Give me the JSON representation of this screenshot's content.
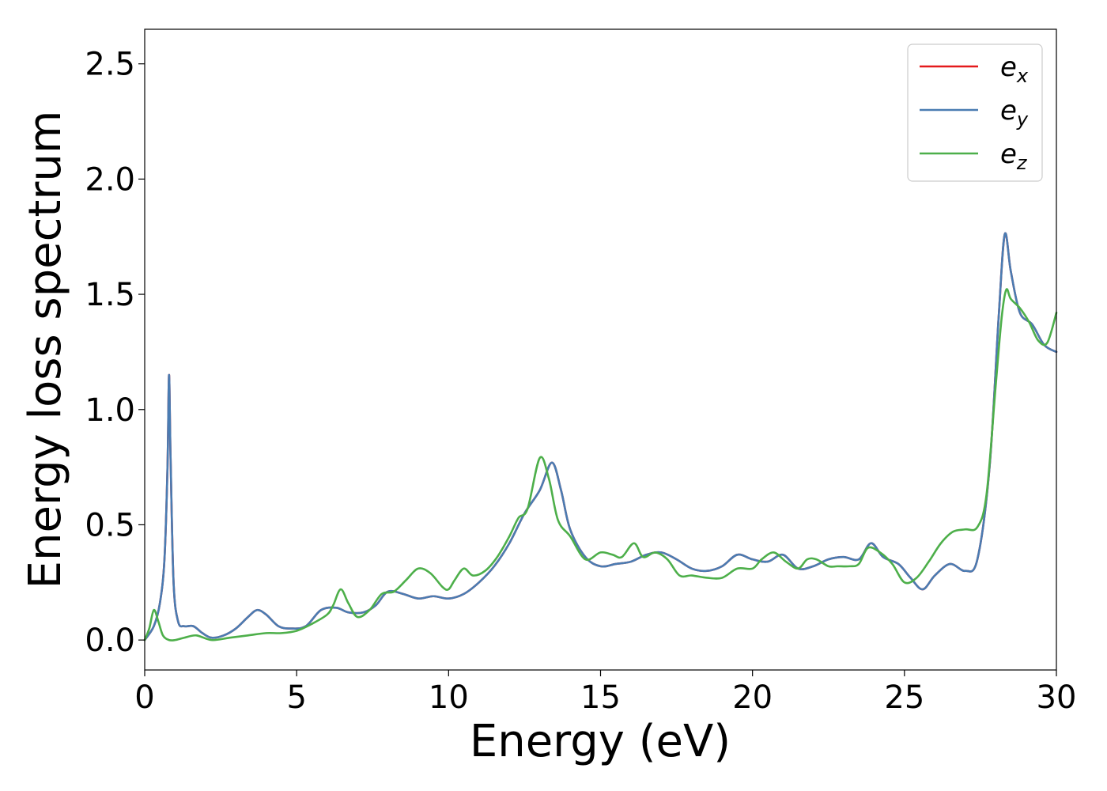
{
  "chart_data": {
    "type": "line",
    "xlabel": "Energy (eV)",
    "ylabel": "Energy loss spectrum",
    "xlim": [
      0,
      30
    ],
    "ylim": [
      -0.13,
      2.65
    ],
    "xticks": [
      0,
      5,
      10,
      15,
      20,
      25,
      30
    ],
    "xtick_labels": [
      "0",
      "5",
      "10",
      "15",
      "20",
      "25",
      "30"
    ],
    "yticks": [
      0.0,
      0.5,
      1.0,
      1.5,
      2.0,
      2.5
    ],
    "ytick_labels": [
      "0.0",
      "0.5",
      "1.0",
      "1.5",
      "2.0",
      "2.5"
    ],
    "grid": false,
    "legend_position": "top-right",
    "legend": [
      {
        "base": "e",
        "sub": "x"
      },
      {
        "base": "e",
        "sub": "y"
      },
      {
        "base": "e",
        "sub": "z"
      }
    ],
    "series": [
      {
        "name": "e_x",
        "color": "#e41a1c",
        "x": [
          0,
          0.3,
          0.5,
          0.65,
          0.75,
          0.8,
          0.85,
          0.95,
          1.1,
          1.3,
          1.6,
          1.9,
          2.2,
          2.6,
          3.0,
          3.4,
          3.7,
          4.0,
          4.4,
          4.8,
          5.3,
          5.8,
          6.3,
          6.7,
          7.2,
          7.6,
          8.0,
          8.5,
          9.0,
          9.5,
          10.0,
          10.5,
          11.0,
          11.5,
          12.0,
          12.5,
          13.0,
          13.4,
          13.7,
          14.0,
          14.5,
          15.0,
          15.5,
          16.0,
          16.5,
          17.0,
          17.5,
          18.0,
          18.5,
          19.0,
          19.5,
          20.0,
          20.5,
          21.0,
          21.5,
          22.0,
          22.5,
          23.0,
          23.5,
          23.9,
          24.3,
          24.8,
          25.2,
          25.6,
          26.0,
          26.5,
          27.0,
          27.4,
          27.8,
          28.1,
          28.3,
          28.5,
          28.8,
          29.2,
          29.6,
          30.0
        ],
        "y": [
          0.0,
          0.06,
          0.16,
          0.35,
          0.75,
          1.15,
          0.8,
          0.25,
          0.08,
          0.06,
          0.06,
          0.03,
          0.01,
          0.02,
          0.05,
          0.1,
          0.13,
          0.11,
          0.06,
          0.05,
          0.06,
          0.13,
          0.14,
          0.12,
          0.12,
          0.15,
          0.21,
          0.2,
          0.18,
          0.19,
          0.18,
          0.2,
          0.25,
          0.32,
          0.42,
          0.55,
          0.65,
          0.77,
          0.65,
          0.48,
          0.36,
          0.32,
          0.33,
          0.34,
          0.37,
          0.38,
          0.35,
          0.31,
          0.3,
          0.32,
          0.37,
          0.35,
          0.34,
          0.37,
          0.31,
          0.32,
          0.35,
          0.36,
          0.35,
          0.42,
          0.36,
          0.33,
          0.27,
          0.22,
          0.28,
          0.33,
          0.3,
          0.35,
          0.75,
          1.4,
          1.76,
          1.6,
          1.42,
          1.37,
          1.28,
          1.25
        ]
      },
      {
        "name": "e_y",
        "color": "#4a7cb2",
        "x": [
          0,
          0.3,
          0.5,
          0.65,
          0.75,
          0.8,
          0.85,
          0.95,
          1.1,
          1.3,
          1.6,
          1.9,
          2.2,
          2.6,
          3.0,
          3.4,
          3.7,
          4.0,
          4.4,
          4.8,
          5.3,
          5.8,
          6.3,
          6.7,
          7.2,
          7.6,
          8.0,
          8.5,
          9.0,
          9.5,
          10.0,
          10.5,
          11.0,
          11.5,
          12.0,
          12.5,
          13.0,
          13.4,
          13.7,
          14.0,
          14.5,
          15.0,
          15.5,
          16.0,
          16.5,
          17.0,
          17.5,
          18.0,
          18.5,
          19.0,
          19.5,
          20.0,
          20.5,
          21.0,
          21.5,
          22.0,
          22.5,
          23.0,
          23.5,
          23.9,
          24.3,
          24.8,
          25.2,
          25.6,
          26.0,
          26.5,
          27.0,
          27.4,
          27.8,
          28.1,
          28.3,
          28.5,
          28.8,
          29.2,
          29.6,
          30.0
        ],
        "y": [
          0.0,
          0.06,
          0.16,
          0.35,
          0.75,
          1.15,
          0.8,
          0.25,
          0.08,
          0.06,
          0.06,
          0.03,
          0.01,
          0.02,
          0.05,
          0.1,
          0.13,
          0.11,
          0.06,
          0.05,
          0.06,
          0.13,
          0.14,
          0.12,
          0.12,
          0.15,
          0.21,
          0.2,
          0.18,
          0.19,
          0.18,
          0.2,
          0.25,
          0.32,
          0.42,
          0.55,
          0.65,
          0.77,
          0.65,
          0.48,
          0.36,
          0.32,
          0.33,
          0.34,
          0.37,
          0.38,
          0.35,
          0.31,
          0.3,
          0.32,
          0.37,
          0.35,
          0.34,
          0.37,
          0.31,
          0.32,
          0.35,
          0.36,
          0.35,
          0.42,
          0.36,
          0.33,
          0.27,
          0.22,
          0.28,
          0.33,
          0.3,
          0.35,
          0.75,
          1.4,
          1.76,
          1.6,
          1.42,
          1.37,
          1.28,
          1.25
        ]
      },
      {
        "name": "e_z",
        "color": "#4daf4a",
        "x": [
          0,
          0.15,
          0.3,
          0.45,
          0.6,
          0.8,
          1.0,
          1.3,
          1.7,
          2.2,
          2.8,
          3.4,
          4.0,
          4.5,
          5.0,
          5.5,
          6.0,
          6.2,
          6.45,
          6.7,
          7.0,
          7.4,
          7.8,
          8.2,
          8.6,
          9.0,
          9.4,
          9.8,
          10.0,
          10.2,
          10.5,
          10.8,
          11.2,
          11.6,
          12.0,
          12.3,
          12.6,
          13.0,
          13.3,
          13.6,
          14.0,
          14.5,
          15.0,
          15.4,
          15.7,
          16.1,
          16.4,
          16.8,
          17.2,
          17.6,
          18.0,
          18.5,
          19.0,
          19.5,
          20.0,
          20.3,
          20.7,
          21.1,
          21.5,
          21.8,
          22.1,
          22.5,
          22.8,
          23.2,
          23.5,
          23.8,
          24.2,
          24.6,
          25.0,
          25.4,
          25.8,
          26.2,
          26.6,
          27.0,
          27.4,
          27.7,
          28.0,
          28.2,
          28.35,
          28.5,
          28.8,
          29.1,
          29.4,
          29.7,
          30.0
        ],
        "y": [
          0.0,
          0.05,
          0.13,
          0.08,
          0.02,
          0.0,
          0.0,
          0.01,
          0.02,
          0.0,
          0.01,
          0.02,
          0.03,
          0.03,
          0.04,
          0.07,
          0.11,
          0.15,
          0.22,
          0.16,
          0.1,
          0.13,
          0.2,
          0.21,
          0.26,
          0.31,
          0.29,
          0.23,
          0.22,
          0.26,
          0.31,
          0.28,
          0.3,
          0.36,
          0.45,
          0.53,
          0.57,
          0.79,
          0.7,
          0.52,
          0.45,
          0.35,
          0.38,
          0.37,
          0.36,
          0.42,
          0.36,
          0.38,
          0.35,
          0.28,
          0.28,
          0.27,
          0.27,
          0.31,
          0.31,
          0.35,
          0.38,
          0.34,
          0.31,
          0.35,
          0.35,
          0.32,
          0.32,
          0.32,
          0.33,
          0.4,
          0.38,
          0.33,
          0.25,
          0.27,
          0.34,
          0.42,
          0.47,
          0.48,
          0.49,
          0.63,
          1.1,
          1.4,
          1.52,
          1.48,
          1.44,
          1.38,
          1.3,
          1.29,
          1.42
        ]
      }
    ]
  }
}
